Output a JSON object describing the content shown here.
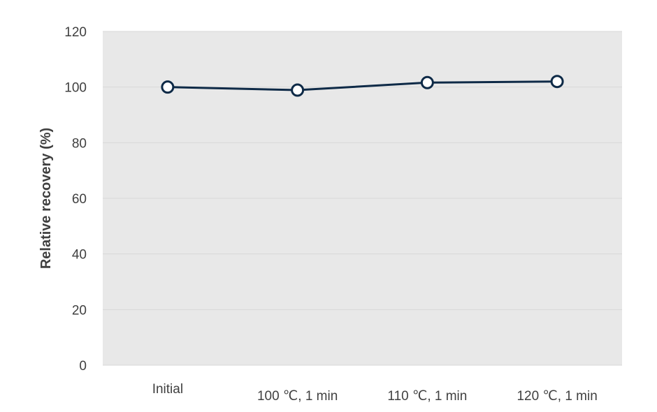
{
  "chart_data": {
    "type": "line",
    "title": "",
    "xlabel": "",
    "ylabel": "Relative recovery (%)",
    "categories": [
      "Initial",
      "100 ℃, 1 min",
      "110 ℃, 1 min",
      "120 ℃, 1 min"
    ],
    "series": [
      {
        "values": [
          100,
          98.9,
          101.6,
          102.0
        ]
      }
    ],
    "ylim": [
      0,
      120
    ],
    "yticks": [
      0,
      20,
      40,
      60,
      80,
      100,
      120
    ],
    "ytick_labels": [
      "0",
      "20",
      "40",
      "60",
      "80",
      "100",
      "120"
    ],
    "grid": true,
    "legend": "none"
  },
  "colors": {
    "plot_background": "#e8e8e8",
    "gridline": "#d9d9d9",
    "series_line": "#0e2a47",
    "marker_fill": "#ffffff",
    "text": "#404040"
  }
}
